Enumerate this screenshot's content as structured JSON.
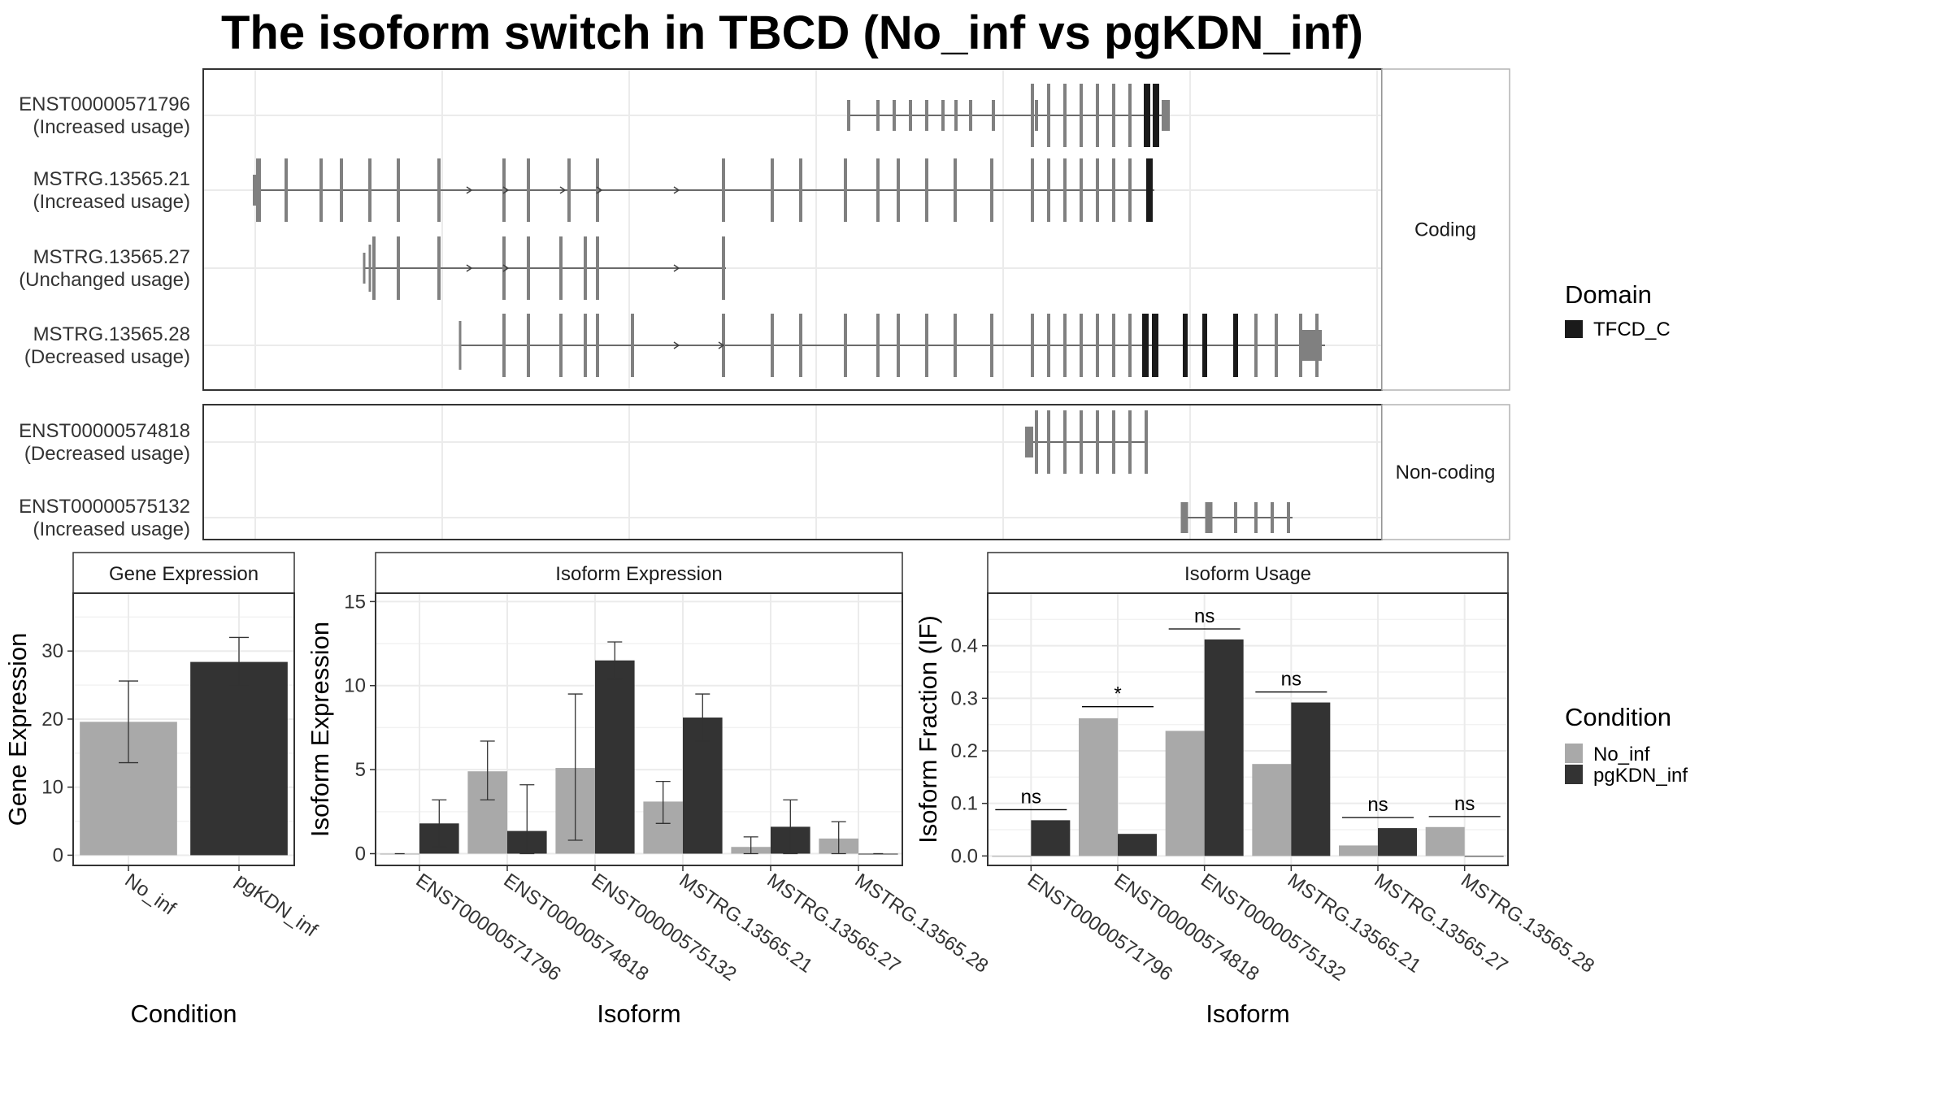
{
  "title": "The isoform switch in TBCD (No_inf vs pgKDN_inf)",
  "colors": {
    "No_inf": "#a9a9a9",
    "pgKDN_inf": "#333333",
    "exon": "#808080",
    "domain": "#1a1a1a",
    "grid": "#ebebeb",
    "panel_border": "#333333",
    "strip_bg": "#ffffff"
  },
  "structure_panel": {
    "groups": [
      {
        "label": "Coding"
      },
      {
        "label": "Non-coding"
      }
    ],
    "isoforms": [
      {
        "name": "ENST00000571796",
        "usage": "(Increased usage)",
        "group": 0
      },
      {
        "name": "MSTRG.13565.21",
        "usage": "(Increased usage)",
        "group": 0
      },
      {
        "name": "MSTRG.13565.27",
        "usage": "(Unchanged usage)",
        "group": 0
      },
      {
        "name": "MSTRG.13565.28",
        "usage": "(Decreased usage)",
        "group": 0
      },
      {
        "name": "ENST00000574818",
        "usage": "(Decreased usage)",
        "group": 1
      },
      {
        "name": "ENST00000575132",
        "usage": "(Increased usage)",
        "group": 1
      }
    ],
    "domain_legend": {
      "title": "Domain",
      "items": [
        {
          "name": "TFCD_C"
        }
      ]
    }
  },
  "chart_data": [
    {
      "type": "bar",
      "title": "Gene Expression",
      "xlabel": "Condition",
      "ylabel": "Gene Expression",
      "categories": [
        "No_inf",
        "pgKDN_inf"
      ],
      "values": [
        19.6,
        28.4
      ],
      "error": [
        [
          13.6,
          25.6
        ],
        [
          24.9,
          32.0
        ]
      ],
      "ylim": [
        -1.5,
        38.5
      ],
      "yticks": [
        0,
        10,
        20,
        30
      ],
      "grid": true
    },
    {
      "type": "bar",
      "title": "Isoform Expression",
      "xlabel": "Isoform",
      "ylabel": "Isoform Expression",
      "categories": [
        "ENST00000571796",
        "ENST00000574818",
        "ENST00000575132",
        "MSTRG.13565.21",
        "MSTRG.13565.27",
        "MSTRG.13565.28"
      ],
      "series": [
        {
          "name": "No_inf",
          "values": [
            0.0,
            4.9,
            5.1,
            3.1,
            0.4,
            0.9
          ],
          "error": [
            [
              0,
              0
            ],
            [
              3.2,
              6.7
            ],
            [
              0.8,
              9.5
            ],
            [
              1.8,
              4.3
            ],
            [
              0,
              1.0
            ],
            [
              0,
              1.9
            ]
          ]
        },
        {
          "name": "pgKDN_inf",
          "values": [
            1.8,
            1.35,
            11.5,
            8.1,
            1.6,
            0.0
          ],
          "error": [
            [
              0.4,
              3.2
            ],
            [
              0,
              4.1
            ],
            [
              10.4,
              12.6
            ],
            [
              6.7,
              9.5
            ],
            [
              0,
              3.2
            ],
            [
              0,
              0
            ]
          ]
        }
      ],
      "ylim": [
        -0.7,
        15.5
      ],
      "yticks": [
        0,
        5,
        10,
        15
      ],
      "grid": true
    },
    {
      "type": "bar",
      "title": "Isoform Usage",
      "xlabel": "Isoform",
      "ylabel": "Isoform Fraction (IF)",
      "categories": [
        "ENST00000571796",
        "ENST00000574818",
        "ENST00000575132",
        "MSTRG.13565.21",
        "MSTRG.13565.27",
        "MSTRG.13565.28"
      ],
      "series": [
        {
          "name": "No_inf",
          "values": [
            0.0,
            0.262,
            0.238,
            0.175,
            0.02,
            0.055
          ]
        },
        {
          "name": "pgKDN_inf",
          "values": [
            0.068,
            0.042,
            0.412,
            0.292,
            0.053,
            0.0
          ]
        }
      ],
      "significance": [
        "ns",
        "*",
        "ns",
        "ns",
        "ns",
        "ns"
      ],
      "sig_y": [
        0.088,
        0.284,
        0.432,
        0.312,
        0.073,
        0.075
      ],
      "ylim": [
        -0.018,
        0.5
      ],
      "yticks": [
        0.0,
        0.1,
        0.2,
        0.3,
        0.4
      ],
      "ytick_labels": [
        "0.0",
        "0.1",
        "0.2",
        "0.3",
        "0.4"
      ],
      "grid": true
    }
  ],
  "condition_legend": {
    "title": "Condition",
    "items": [
      {
        "name": "No_inf"
      },
      {
        "name": "pgKDN_inf"
      }
    ]
  }
}
